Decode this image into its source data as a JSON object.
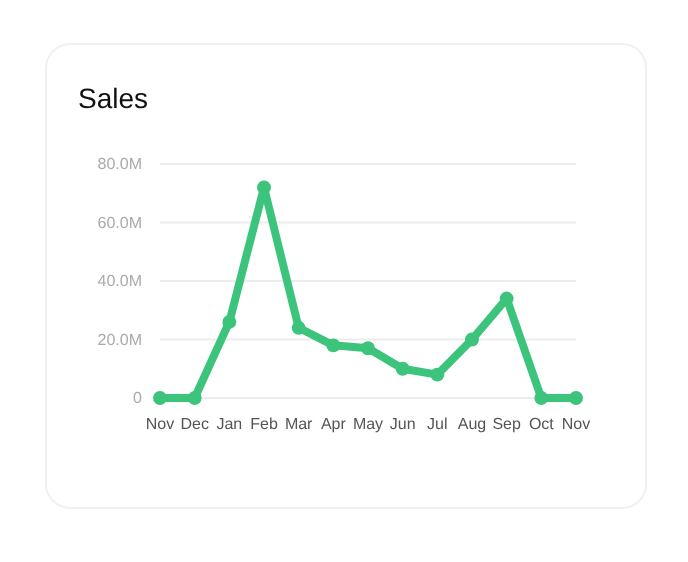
{
  "chart_data": {
    "type": "line",
    "title": "Sales",
    "categories": [
      "Nov",
      "Dec",
      "Jan",
      "Feb",
      "Mar",
      "Apr",
      "May",
      "Jun",
      "Jul",
      "Aug",
      "Sep",
      "Oct",
      "Nov"
    ],
    "series": [
      {
        "color": "#3cc47c",
        "values": [
          0,
          0,
          26,
          72,
          24,
          18,
          17,
          10,
          8,
          20,
          34,
          0,
          0
        ]
      }
    ],
    "ylim": [
      0,
      80
    ],
    "yticks": [
      {
        "value": 0,
        "label": "0"
      },
      {
        "value": 20,
        "label": "20.0M"
      },
      {
        "value": 40,
        "label": "40.0M"
      },
      {
        "value": 60,
        "label": "60.0M"
      },
      {
        "value": 80,
        "label": "80.0M"
      }
    ],
    "grid": "y",
    "marker": "circle",
    "line_style": "solid"
  }
}
